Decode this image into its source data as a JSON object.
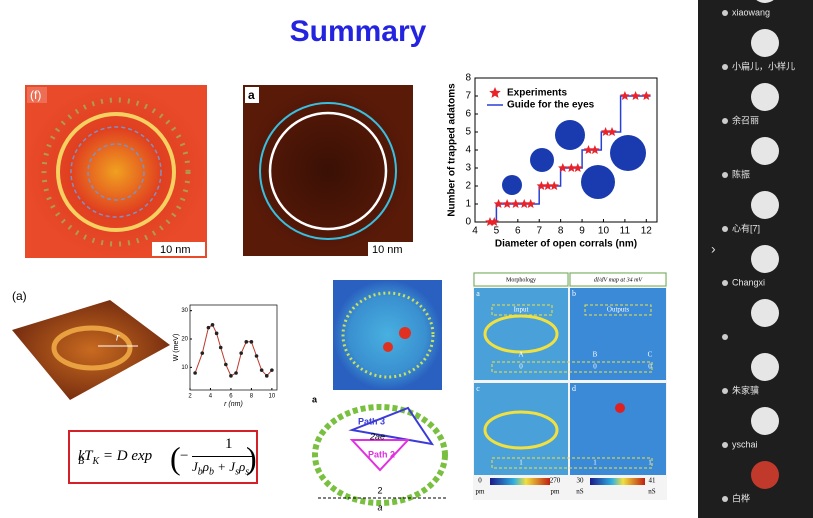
{
  "slide": {
    "title": "Summary",
    "fig_f": {
      "label": "(f)",
      "scale": "10 nm"
    },
    "fig_a": {
      "label": "a",
      "scale": "10 nm"
    },
    "chart": {
      "type": "scatter",
      "xlabel": "Diameter of open corrals (nm)",
      "ylabel": "Number of trapped adatoms",
      "xlim": [
        4,
        12.5
      ],
      "ylim": [
        0,
        8
      ],
      "xticks": [
        4,
        5,
        6,
        7,
        8,
        9,
        10,
        11,
        12
      ],
      "yticks": [
        0,
        1,
        2,
        3,
        4,
        5,
        6,
        7,
        8
      ],
      "series": [
        {
          "name": "Experiments",
          "color": "#e8242a",
          "x": [
            4.7,
            4.9,
            5.1,
            5.5,
            5.9,
            6.3,
            6.6,
            7.1,
            7.4,
            7.7,
            8.1,
            8.5,
            8.8,
            9.3,
            9.6,
            10.1,
            10.4,
            11.0,
            11.5,
            12.0
          ],
          "values": [
            0,
            0,
            1,
            1,
            1,
            1,
            1,
            2,
            2,
            2,
            3,
            3,
            3,
            4,
            4,
            5,
            5,
            7,
            7,
            7
          ]
        },
        {
          "name": "Guide for the eyes",
          "color": "#2a3fd6",
          "x": [
            4.6,
            5.0,
            5.0,
            7.0,
            7.0,
            8.0,
            8.0,
            9.0,
            9.0,
            9.9,
            9.9,
            10.8,
            10.8,
            12.2
          ],
          "values": [
            0,
            0,
            1,
            1,
            2,
            2,
            3,
            3,
            4,
            4,
            5,
            5,
            7,
            7
          ]
        }
      ]
    },
    "fig_3d": {
      "label": "(a)",
      "r": "r"
    },
    "w_plot": {
      "type": "line",
      "ylabel": "W (meV)",
      "xlabel": "r (nm)",
      "xlim": [
        2,
        10.5
      ],
      "ylim": [
        2,
        32
      ],
      "xticks": [
        2,
        4,
        6,
        8,
        10
      ],
      "yticks": [
        10,
        20,
        30
      ],
      "color": "#c0392b",
      "x": [
        2.5,
        3.2,
        3.8,
        4.2,
        4.6,
        5.0,
        5.5,
        6.0,
        6.5,
        7.0,
        7.5,
        8.0,
        8.5,
        9.0,
        9.5,
        10.0
      ],
      "values": [
        8,
        15,
        24,
        25,
        22,
        17,
        11,
        7,
        8,
        15,
        19,
        19,
        14,
        9,
        7,
        9
      ]
    },
    "formula": [
      "k",
      "B",
      "T",
      "K",
      "= D exp",
      "1",
      "J",
      "b",
      "ρ",
      "b",
      "+ J",
      "s",
      "ρ",
      "s"
    ],
    "fig_path": {
      "label": "a",
      "path3": "Path 3",
      "ae": "2ae",
      "path2": "Path 2",
      "two": "2",
      "axis": "a"
    },
    "fig_map": {
      "head_left": "Morphology",
      "head_right": "dI/dV map at 34 mV",
      "panels": [
        "a",
        "b",
        "c",
        "d"
      ],
      "input": "Input",
      "outputs": "Outputs",
      "letters": [
        "A",
        "B",
        "C"
      ],
      "row1": [
        "0",
        "0",
        "0"
      ],
      "row2": [
        "1",
        "1",
        "1"
      ],
      "bar_left": [
        "0",
        "270"
      ],
      "bar_right": [
        "30",
        "41"
      ],
      "unit_left": "pm",
      "unit_right": "nS"
    }
  },
  "participants": [
    "xiaowang",
    "小扁儿，小样儿",
    "余召丽",
    "陈振",
    "心有[7]",
    "Changxi",
    "朱家骥",
    "yschai",
    "白桦"
  ]
}
